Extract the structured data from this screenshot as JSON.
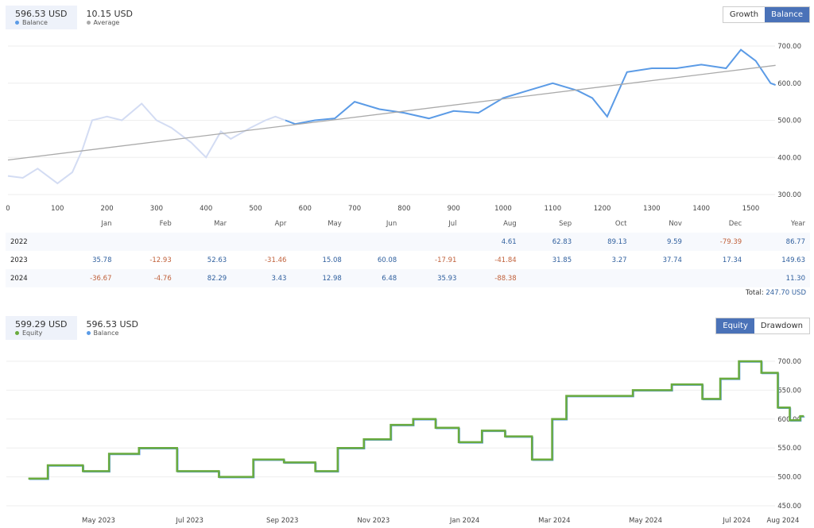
{
  "top": {
    "legend": [
      {
        "value": "596.53 USD",
        "label": "Balance",
        "color": "#5b9be6"
      },
      {
        "value": "10.15 USD",
        "label": "Average",
        "color": "#aaaaaa"
      }
    ],
    "buttons": [
      "Growth",
      "Balance"
    ],
    "active": "Balance"
  },
  "bottom": {
    "legend": [
      {
        "value": "599.29 USD",
        "label": "Equity",
        "color": "#6aab3e"
      },
      {
        "value": "596.53 USD",
        "label": "Balance",
        "color": "#5b9be6"
      }
    ],
    "buttons": [
      "Equity",
      "Drawdown"
    ],
    "active": "Equity"
  },
  "table": {
    "headers": [
      "",
      "Jan",
      "Feb",
      "Mar",
      "Apr",
      "May",
      "Jun",
      "Jul",
      "Aug",
      "Sep",
      "Oct",
      "Nov",
      "Dec",
      "Year"
    ],
    "rows": [
      [
        "2022",
        "",
        "",
        "",
        "",
        "",
        "",
        "",
        "4.61",
        "62.83",
        "89.13",
        "9.59",
        "-79.39",
        "86.77"
      ],
      [
        "2023",
        "35.78",
        "-12.93",
        "52.63",
        "-31.46",
        "15.08",
        "60.08",
        "-17.91",
        "-41.84",
        "31.85",
        "3.27",
        "37.74",
        "17.34",
        "149.63"
      ],
      [
        "2024",
        "-36.67",
        "-4.76",
        "82.29",
        "3.43",
        "12.98",
        "6.48",
        "35.93",
        "-88.38",
        "",
        "",
        "",
        "",
        "11.30"
      ]
    ],
    "total_label": "Total:",
    "total_value": "247.70 USD"
  },
  "chart_data": [
    {
      "type": "line",
      "xlim": [
        0,
        1550
      ],
      "ylim": [
        300,
        700
      ],
      "xticks": [
        0,
        100,
        200,
        300,
        400,
        500,
        600,
        700,
        800,
        900,
        1000,
        1100,
        1200,
        1300,
        1400,
        1500
      ],
      "yticks": [
        "300.00",
        "400.00",
        "500.00",
        "600.00",
        "700.00"
      ],
      "series": [
        {
          "name": "Balance",
          "points": [
            [
              0,
              350
            ],
            [
              30,
              345
            ],
            [
              60,
              370
            ],
            [
              100,
              330
            ],
            [
              130,
              360
            ],
            [
              150,
              420
            ],
            [
              170,
              500
            ],
            [
              200,
              510
            ],
            [
              230,
              500
            ],
            [
              270,
              545
            ],
            [
              300,
              500
            ],
            [
              330,
              480
            ],
            [
              370,
              440
            ],
            [
              400,
              400
            ],
            [
              430,
              470
            ],
            [
              450,
              450
            ],
            [
              490,
              480
            ],
            [
              520,
              500
            ],
            [
              540,
              510
            ],
            [
              560,
              500
            ],
            [
              580,
              490
            ],
            [
              620,
              500
            ],
            [
              660,
              505
            ],
            [
              700,
              550
            ],
            [
              750,
              530
            ],
            [
              800,
              520
            ],
            [
              850,
              505
            ],
            [
              900,
              525
            ],
            [
              950,
              520
            ],
            [
              1000,
              560
            ],
            [
              1050,
              580
            ],
            [
              1100,
              600
            ],
            [
              1150,
              580
            ],
            [
              1180,
              560
            ],
            [
              1210,
              510
            ],
            [
              1250,
              630
            ],
            [
              1300,
              640
            ],
            [
              1350,
              640
            ],
            [
              1400,
              650
            ],
            [
              1450,
              640
            ],
            [
              1480,
              690
            ],
            [
              1510,
              660
            ],
            [
              1540,
              600
            ],
            [
              1550,
              595
            ]
          ]
        },
        {
          "name": "Average",
          "points": [
            [
              0,
              393
            ],
            [
              1550,
              648
            ]
          ]
        }
      ]
    },
    {
      "type": "line",
      "xlim": [
        "2023-03-15",
        "2024-08-01"
      ],
      "ylim": [
        450,
        700
      ],
      "xticks": [
        [
          "2023-05-01",
          "May 2023"
        ],
        [
          "2023-07-01",
          "Jul 2023"
        ],
        [
          "2023-09-01",
          "Sep 2023"
        ],
        [
          "2023-11-01",
          "Nov 2023"
        ],
        [
          "2024-01-01",
          "Jan 2024"
        ],
        [
          "2024-03-01",
          "Mar 2024"
        ],
        [
          "2024-05-01",
          "May 2024"
        ],
        [
          "2024-07-01",
          "Jul 2024"
        ],
        [
          "2024-08-01",
          "Aug 2024"
        ]
      ],
      "yticks": [
        "450.00",
        "500.00",
        "550.00",
        "600.00",
        "650.00",
        "700.00"
      ],
      "series": [
        {
          "name": "Equity",
          "points": [
            [
              "2023-03-15",
              497
            ],
            [
              "2023-04-10",
              520
            ],
            [
              "2023-05-01",
              510
            ],
            [
              "2023-05-15",
              540
            ],
            [
              "2023-06-10",
              550
            ],
            [
              "2023-07-05",
              510
            ],
            [
              "2023-08-05",
              500
            ],
            [
              "2023-08-20",
              530
            ],
            [
              "2023-09-15",
              525
            ],
            [
              "2023-10-01",
              510
            ],
            [
              "2023-10-15",
              550
            ],
            [
              "2023-11-05",
              565
            ],
            [
              "2023-11-20",
              590
            ],
            [
              "2023-12-05",
              600
            ],
            [
              "2023-12-20",
              585
            ],
            [
              "2024-01-05",
              560
            ],
            [
              "2024-01-20",
              580
            ],
            [
              "2024-02-05",
              570
            ],
            [
              "2024-02-25",
              530
            ],
            [
              "2024-03-03",
              600
            ],
            [
              "2024-03-15",
              640
            ],
            [
              "2024-04-10",
              640
            ],
            [
              "2024-05-05",
              650
            ],
            [
              "2024-06-01",
              660
            ],
            [
              "2024-06-15",
              635
            ],
            [
              "2024-06-25",
              670
            ],
            [
              "2024-07-10",
              700
            ],
            [
              "2024-07-25",
              680
            ],
            [
              "2024-08-01",
              620
            ],
            [
              "2024-08-10",
              598
            ],
            [
              "2024-08-15",
              605
            ]
          ]
        }
      ]
    }
  ]
}
